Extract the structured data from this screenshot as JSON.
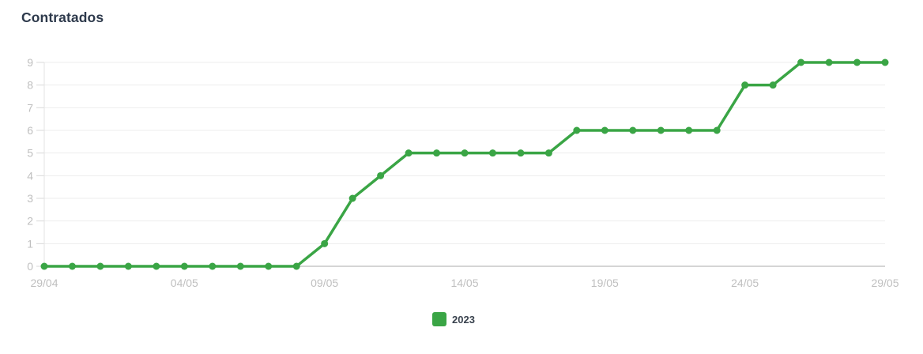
{
  "page": {
    "title": "Contratados"
  },
  "legend": {
    "items": [
      {
        "label": "2023",
        "color": "#3aa545"
      }
    ]
  },
  "chart_data": {
    "type": "line",
    "title": "Contratados",
    "x": [
      "29/04",
      "30/04",
      "01/05",
      "02/05",
      "03/05",
      "04/05",
      "05/05",
      "06/05",
      "07/05",
      "08/05",
      "09/05",
      "10/05",
      "11/05",
      "12/05",
      "13/05",
      "14/05",
      "15/05",
      "16/05",
      "17/05",
      "18/05",
      "19/05",
      "20/05",
      "21/05",
      "22/05",
      "23/05",
      "24/05",
      "25/05",
      "26/05",
      "27/05",
      "28/05",
      "29/05"
    ],
    "series": [
      {
        "name": "2023",
        "color": "#3aa545",
        "values": [
          0,
          0,
          0,
          0,
          0,
          0,
          0,
          0,
          0,
          0,
          1,
          3,
          4,
          5,
          5,
          5,
          5,
          5,
          5,
          6,
          6,
          6,
          6,
          6,
          6,
          8,
          8,
          9,
          9,
          9,
          9
        ]
      }
    ],
    "xlabel": "",
    "ylabel": "",
    "ylim": [
      0,
      9
    ],
    "y_ticks": [
      0,
      1,
      2,
      3,
      4,
      5,
      6,
      7,
      8,
      9
    ],
    "x_tick_labels": [
      "29/04",
      "04/05",
      "09/05",
      "14/05",
      "19/05",
      "24/05",
      "29/05"
    ],
    "x_label_every": 5,
    "grid": "horizontal",
    "legend_position": "bottom",
    "marker": "circle",
    "colors": {
      "line": "#3aa545",
      "axis_label": "#bfbfbf",
      "grid_line": "#ededed",
      "tick_line": "#d9d9d9",
      "y_axis_line": "#e3e3e3",
      "x_axis_line": "#ababab",
      "background": "#ffffff",
      "title": "#2e3a4c"
    }
  }
}
